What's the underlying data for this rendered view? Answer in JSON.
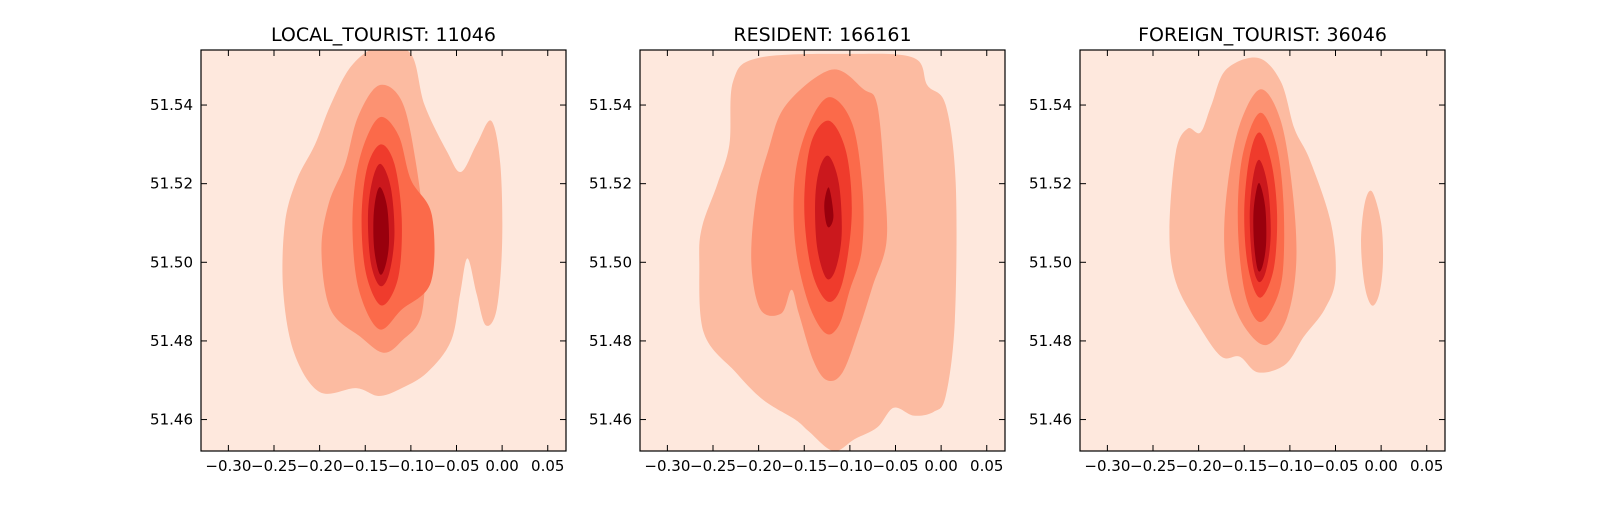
{
  "chart_data": [
    {
      "type": "heatmap",
      "subtype": "kde-contour",
      "title": "LOCAL_TOURIST: 11046",
      "xlim": [
        -0.33,
        0.07
      ],
      "ylim": [
        51.452,
        51.554
      ],
      "xticks": [
        -0.3,
        -0.25,
        -0.2,
        -0.15,
        -0.1,
        -0.05,
        0.0,
        0.05
      ],
      "xtick_labels": [
        "−0.30",
        "−0.25",
        "−0.20",
        "−0.15",
        "−0.10",
        "−0.05",
        "0.00",
        "0.05"
      ],
      "yticks": [
        51.46,
        51.48,
        51.5,
        51.52,
        51.54
      ],
      "ytick_labels": [
        "51.46",
        "51.48",
        "51.50",
        "51.52",
        "51.54"
      ],
      "peak": [
        -0.132,
        51.514
      ],
      "levels": [
        {
          "color": "#fcbba1",
          "points": [
            [
              -0.134,
              51.555
            ],
            [
              -0.1,
              51.553
            ],
            [
              -0.085,
              51.54
            ],
            [
              -0.06,
              51.528
            ],
            [
              -0.045,
              51.523
            ],
            [
              -0.028,
              51.53
            ],
            [
              -0.012,
              51.536
            ],
            [
              -0.002,
              51.525
            ],
            [
              0.0,
              51.505
            ],
            [
              -0.006,
              51.488
            ],
            [
              -0.018,
              51.484
            ],
            [
              -0.028,
              51.492
            ],
            [
              -0.038,
              51.501
            ],
            [
              -0.046,
              51.492
            ],
            [
              -0.056,
              51.48
            ],
            [
              -0.082,
              51.472
            ],
            [
              -0.11,
              51.468
            ],
            [
              -0.135,
              51.466
            ],
            [
              -0.16,
              51.468
            ],
            [
              -0.2,
              51.467
            ],
            [
              -0.228,
              51.477
            ],
            [
              -0.24,
              51.493
            ],
            [
              -0.238,
              51.51
            ],
            [
              -0.225,
              51.521
            ],
            [
              -0.205,
              51.53
            ],
            [
              -0.188,
              51.54
            ],
            [
              -0.165,
              51.55
            ]
          ]
        },
        {
          "color": "#fc9272",
          "points": [
            [
              -0.135,
              51.545
            ],
            [
              -0.11,
              51.541
            ],
            [
              -0.095,
              51.526
            ],
            [
              -0.085,
              51.506
            ],
            [
              -0.088,
              51.487
            ],
            [
              -0.11,
              51.48
            ],
            [
              -0.13,
              51.477
            ],
            [
              -0.155,
              51.481
            ],
            [
              -0.188,
              51.488
            ],
            [
              -0.198,
              51.503
            ],
            [
              -0.19,
              51.515
            ],
            [
              -0.172,
              51.525
            ],
            [
              -0.158,
              51.537
            ]
          ]
        },
        {
          "color": "#fb6a4a",
          "points": [
            [
              -0.132,
              51.537
            ],
            [
              -0.113,
              51.532
            ],
            [
              -0.1,
              51.521
            ],
            [
              -0.077,
              51.512
            ],
            [
              -0.078,
              51.495
            ],
            [
              -0.11,
              51.488
            ],
            [
              -0.135,
              51.483
            ],
            [
              -0.157,
              51.493
            ],
            [
              -0.164,
              51.508
            ],
            [
              -0.16,
              51.522
            ],
            [
              -0.148,
              51.532
            ]
          ]
        },
        {
          "color": "#ef3b2c",
          "points": [
            [
              -0.133,
              51.53
            ],
            [
              -0.118,
              51.525
            ],
            [
              -0.11,
              51.511
            ],
            [
              -0.114,
              51.496
            ],
            [
              -0.132,
              51.489
            ],
            [
              -0.149,
              51.497
            ],
            [
              -0.154,
              51.511
            ],
            [
              -0.148,
              51.524
            ]
          ]
        },
        {
          "color": "#cb181d",
          "points": [
            [
              -0.133,
              51.525
            ],
            [
              -0.122,
              51.519
            ],
            [
              -0.118,
              51.507
            ],
            [
              -0.124,
              51.497
            ],
            [
              -0.134,
              51.494
            ],
            [
              -0.144,
              51.5
            ],
            [
              -0.147,
              51.512
            ],
            [
              -0.142,
              51.521
            ]
          ]
        },
        {
          "color": "#99000d",
          "points": [
            [
              -0.133,
              51.519
            ],
            [
              -0.126,
              51.514
            ],
            [
              -0.124,
              51.505
            ],
            [
              -0.128,
              51.499
            ],
            [
              -0.134,
              51.497
            ],
            [
              -0.14,
              51.503
            ],
            [
              -0.141,
              51.511
            ],
            [
              -0.138,
              51.517
            ]
          ]
        }
      ]
    },
    {
      "type": "heatmap",
      "subtype": "kde-contour",
      "title": "RESIDENT: 166161",
      "xlim": [
        -0.33,
        0.07
      ],
      "ylim": [
        51.452,
        51.554
      ],
      "xticks": [
        -0.3,
        -0.25,
        -0.2,
        -0.15,
        -0.1,
        -0.05,
        0.0,
        0.05
      ],
      "xtick_labels": [
        "−0.30",
        "−0.25",
        "−0.20",
        "−0.15",
        "−0.10",
        "−0.05",
        "0.00",
        "0.05"
      ],
      "yticks": [
        51.46,
        51.48,
        51.5,
        51.52,
        51.54
      ],
      "ytick_labels": [
        "51.46",
        "51.48",
        "51.50",
        "51.52",
        "51.54"
      ],
      "peak": [
        -0.123,
        51.515
      ],
      "levels": [
        {
          "color": "#fcbba1",
          "points": [
            [
              -0.2,
              51.552
            ],
            [
              -0.1,
              51.553
            ],
            [
              -0.03,
              51.552
            ],
            [
              -0.015,
              51.545
            ],
            [
              0.005,
              51.54
            ],
            [
              0.016,
              51.52
            ],
            [
              0.015,
              51.485
            ],
            [
              0.005,
              51.466
            ],
            [
              -0.008,
              51.462
            ],
            [
              -0.03,
              51.461
            ],
            [
              -0.052,
              51.463
            ],
            [
              -0.07,
              51.458
            ],
            [
              -0.095,
              51.455
            ],
            [
              -0.118,
              51.452
            ],
            [
              -0.145,
              51.457
            ],
            [
              -0.16,
              51.46
            ],
            [
              -0.195,
              51.465
            ],
            [
              -0.225,
              51.472
            ],
            [
              -0.26,
              51.482
            ],
            [
              -0.265,
              51.5
            ],
            [
              -0.262,
              51.509
            ],
            [
              -0.245,
              51.52
            ],
            [
              -0.232,
              51.53
            ],
            [
              -0.228,
              51.546
            ]
          ]
        },
        {
          "color": "#fc9272",
          "points": [
            [
              -0.12,
              51.549
            ],
            [
              -0.085,
              51.544
            ],
            [
              -0.07,
              51.54
            ],
            [
              -0.062,
              51.52
            ],
            [
              -0.06,
              51.505
            ],
            [
              -0.075,
              51.494
            ],
            [
              -0.09,
              51.483
            ],
            [
              -0.108,
              51.472
            ],
            [
              -0.125,
              51.47
            ],
            [
              -0.14,
              51.475
            ],
            [
              -0.156,
              51.487
            ],
            [
              -0.164,
              51.493
            ],
            [
              -0.175,
              51.487
            ],
            [
              -0.198,
              51.488
            ],
            [
              -0.208,
              51.5
            ],
            [
              -0.203,
              51.516
            ],
            [
              -0.19,
              51.528
            ],
            [
              -0.17,
              51.54
            ]
          ]
        },
        {
          "color": "#fb6a4a",
          "points": [
            [
              -0.122,
              51.542
            ],
            [
              -0.097,
              51.535
            ],
            [
              -0.086,
              51.518
            ],
            [
              -0.087,
              51.503
            ],
            [
              -0.1,
              51.493
            ],
            [
              -0.112,
              51.484
            ],
            [
              -0.127,
              51.482
            ],
            [
              -0.146,
              51.49
            ],
            [
              -0.16,
              51.505
            ],
            [
              -0.16,
              51.522
            ],
            [
              -0.145,
              51.535
            ]
          ]
        },
        {
          "color": "#ef3b2c",
          "points": [
            [
              -0.123,
              51.536
            ],
            [
              -0.104,
              51.528
            ],
            [
              -0.098,
              51.512
            ],
            [
              -0.108,
              51.495
            ],
            [
              -0.124,
              51.49
            ],
            [
              -0.142,
              51.498
            ],
            [
              -0.15,
              51.514
            ],
            [
              -0.143,
              51.53
            ]
          ]
        },
        {
          "color": "#cb181d",
          "points": [
            [
              -0.123,
              51.527
            ],
            [
              -0.112,
              51.52
            ],
            [
              -0.109,
              51.507
            ],
            [
              -0.116,
              51.498
            ],
            [
              -0.126,
              51.496
            ],
            [
              -0.136,
              51.504
            ],
            [
              -0.138,
              51.516
            ],
            [
              -0.133,
              51.524
            ]
          ]
        },
        {
          "color": "#99000d",
          "points": [
            [
              -0.123,
              51.519
            ],
            [
              -0.118,
              51.512
            ],
            [
              -0.122,
              51.509
            ],
            [
              -0.126,
              51.51
            ],
            [
              -0.128,
              51.515
            ]
          ]
        }
      ]
    },
    {
      "type": "heatmap",
      "subtype": "kde-contour",
      "title": "FOREIGN_TOURIST: 36046",
      "xlim": [
        -0.33,
        0.07
      ],
      "ylim": [
        51.452,
        51.554
      ],
      "xticks": [
        -0.3,
        -0.25,
        -0.2,
        -0.15,
        -0.1,
        -0.05,
        0.0,
        0.05
      ],
      "xtick_labels": [
        "−0.30",
        "−0.25",
        "−0.20",
        "−0.15",
        "−0.10",
        "−0.05",
        "0.00",
        "0.05"
      ],
      "yticks": [
        51.46,
        51.48,
        51.5,
        51.52,
        51.54
      ],
      "ytick_labels": [
        "51.46",
        "51.48",
        "51.50",
        "51.52",
        "51.54"
      ],
      "peak": [
        -0.132,
        51.514
      ],
      "levels": [
        {
          "color": "#fcbba1",
          "points": [
            [
              -0.135,
              51.552
            ],
            [
              -0.11,
              51.546
            ],
            [
              -0.095,
              51.534
            ],
            [
              -0.078,
              51.526
            ],
            [
              -0.055,
              51.51
            ],
            [
              -0.05,
              51.496
            ],
            [
              -0.062,
              51.488
            ],
            [
              -0.085,
              51.481
            ],
            [
              -0.105,
              51.474
            ],
            [
              -0.135,
              51.472
            ],
            [
              -0.155,
              51.476
            ],
            [
              -0.175,
              51.476
            ],
            [
              -0.2,
              51.484
            ],
            [
              -0.225,
              51.495
            ],
            [
              -0.232,
              51.508
            ],
            [
              -0.225,
              51.528
            ],
            [
              -0.212,
              51.534
            ],
            [
              -0.198,
              51.533
            ],
            [
              -0.186,
              51.54
            ],
            [
              -0.17,
              51.549
            ]
          ]
        },
        {
          "color": "#fcbba1",
          "points": [
            [
              -0.01,
              51.518
            ],
            [
              0.0,
              51.51
            ],
            [
              0.002,
              51.5
            ],
            [
              -0.002,
              51.492
            ],
            [
              -0.01,
              51.489
            ],
            [
              -0.018,
              51.494
            ],
            [
              -0.022,
              51.505
            ],
            [
              -0.018,
              51.515
            ]
          ]
        },
        {
          "color": "#fc9272",
          "points": [
            [
              -0.132,
              51.544
            ],
            [
              -0.11,
              51.536
            ],
            [
              -0.097,
              51.518
            ],
            [
              -0.093,
              51.5
            ],
            [
              -0.103,
              51.486
            ],
            [
              -0.125,
              51.479
            ],
            [
              -0.148,
              51.483
            ],
            [
              -0.165,
              51.492
            ],
            [
              -0.172,
              51.505
            ],
            [
              -0.168,
              51.52
            ],
            [
              -0.155,
              51.535
            ]
          ]
        },
        {
          "color": "#fb6a4a",
          "points": [
            [
              -0.133,
              51.538
            ],
            [
              -0.115,
              51.53
            ],
            [
              -0.107,
              51.515
            ],
            [
              -0.108,
              51.497
            ],
            [
              -0.12,
              51.488
            ],
            [
              -0.135,
              51.485
            ],
            [
              -0.15,
              51.493
            ],
            [
              -0.157,
              51.51
            ],
            [
              -0.152,
              51.527
            ]
          ]
        },
        {
          "color": "#ef3b2c",
          "points": [
            [
              -0.133,
              51.533
            ],
            [
              -0.12,
              51.525
            ],
            [
              -0.114,
              51.512
            ],
            [
              -0.118,
              51.498
            ],
            [
              -0.133,
              51.491
            ],
            [
              -0.146,
              51.499
            ],
            [
              -0.15,
              51.513
            ],
            [
              -0.144,
              51.527
            ]
          ]
        },
        {
          "color": "#cb181d",
          "points": [
            [
              -0.133,
              51.526
            ],
            [
              -0.124,
              51.519
            ],
            [
              -0.121,
              51.507
            ],
            [
              -0.126,
              51.498
            ],
            [
              -0.134,
              51.495
            ],
            [
              -0.141,
              51.5
            ],
            [
              -0.144,
              51.512
            ],
            [
              -0.14,
              51.522
            ]
          ]
        },
        {
          "color": "#99000d",
          "points": [
            [
              -0.133,
              51.52
            ],
            [
              -0.127,
              51.514
            ],
            [
              -0.126,
              51.505
            ],
            [
              -0.13,
              51.499
            ],
            [
              -0.135,
              51.498
            ],
            [
              -0.139,
              51.504
            ],
            [
              -0.14,
              51.512
            ],
            [
              -0.137,
              51.518
            ]
          ]
        }
      ]
    }
  ],
  "colors": {
    "background_level": "#fee8dd",
    "axis": "#000000"
  }
}
